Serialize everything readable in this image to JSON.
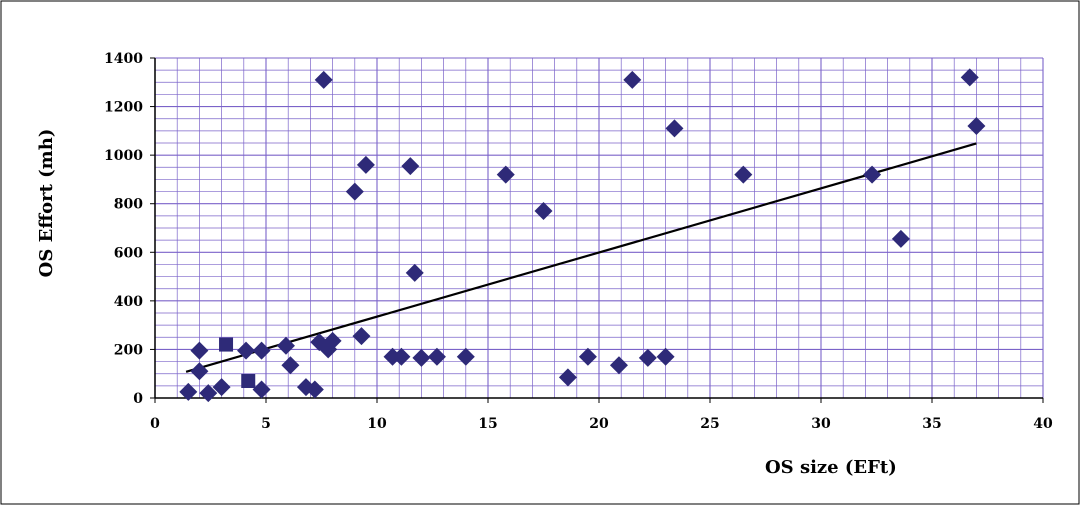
{
  "chart_data": {
    "type": "scatter",
    "title": "",
    "xlabel": "OS size (EFt)",
    "ylabel": "OS Effort (mh)",
    "xlim": [
      0,
      40
    ],
    "ylim": [
      0,
      1400
    ],
    "x_ticks": [
      "0",
      "5",
      "10",
      "15",
      "20",
      "25",
      "30",
      "35",
      "40"
    ],
    "y_ticks": [
      "0",
      "200",
      "400",
      "600",
      "800",
      "1000",
      "1200",
      "1400"
    ],
    "grid": true,
    "legend": "none",
    "colors": {
      "marker": "#2e2a78",
      "grid": "#7b63c9",
      "trendline": "#000000"
    },
    "series": [
      {
        "marker": "diamond",
        "x": [
          1.5,
          2.0,
          2.0,
          2.4,
          3.0,
          4.1,
          4.8,
          4.8,
          5.9,
          6.1,
          6.8,
          7.2,
          7.6,
          7.4,
          7.8,
          8.0,
          9.0,
          9.3,
          9.5,
          10.7,
          11.1,
          11.5,
          11.7,
          12.0,
          12.7,
          14.0,
          15.8,
          17.5,
          18.6,
          19.5,
          20.9,
          21.5,
          22.2,
          23.0,
          23.4,
          26.5,
          32.3,
          33.6,
          36.7,
          37.0
        ],
        "y": [
          25,
          110,
          195,
          20,
          45,
          195,
          195,
          35,
          215,
          135,
          45,
          35,
          1310,
          230,
          200,
          235,
          850,
          255,
          960,
          170,
          170,
          955,
          515,
          165,
          170,
          170,
          920,
          770,
          85,
          170,
          135,
          1310,
          165,
          170,
          1110,
          920,
          920,
          655,
          1320,
          1120
        ]
      },
      {
        "marker": "square",
        "x": [
          3.2,
          4.2
        ],
        "y": [
          220,
          70
        ]
      }
    ],
    "trendline": {
      "x": [
        1.4,
        37.0
      ],
      "y": [
        108,
        1048
      ]
    }
  }
}
